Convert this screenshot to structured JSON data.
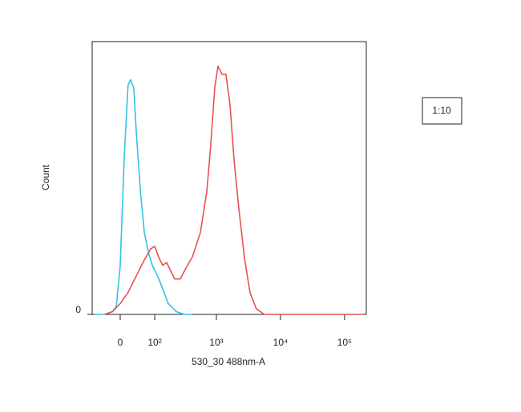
{
  "chart_data": {
    "type": "line",
    "xlabel": "530_30 488nm-A",
    "ylabel": "Count",
    "annotation": "1:10",
    "xscale": "biexponential",
    "xlim": [
      -75,
      218500
    ],
    "xticks": [
      0,
      {
        "value": 100,
        "label": "10²"
      },
      {
        "value": 1000,
        "label": "10³"
      },
      {
        "value": 10000,
        "label": "10⁴"
      },
      {
        "value": 100000,
        "label": "10⁵"
      }
    ],
    "ylim": [
      0,
      100
    ],
    "yticks": [
      0
    ],
    "series": [
      {
        "color": "#33c3e3",
        "x": [
          -67,
          -38,
          -18,
          -9,
          0,
          9,
          18,
          24,
          32,
          38,
          50,
          62,
          75,
          90,
          119,
          172,
          233,
          313,
          419
        ],
        "values": [
          0,
          0,
          1,
          3,
          18,
          57,
          84,
          86,
          83,
          68,
          45,
          30,
          23,
          18,
          13,
          4,
          1,
          0,
          0
        ]
      },
      {
        "color": "#e8524e",
        "x": [
          -38,
          -18,
          0,
          18,
          38,
          62,
          84,
          100,
          118,
          138,
          162,
          188,
          219,
          270,
          332,
          419,
          562,
          708,
          816,
          943,
          1058,
          1222,
          1412,
          1631,
          1882,
          2236,
          2736,
          3350,
          4216,
          5620,
          42090,
          200000
        ],
        "values": [
          0,
          1,
          4,
          8,
          14,
          20,
          24,
          25,
          21,
          18,
          19,
          16,
          13,
          13,
          17,
          21,
          30,
          45,
          62,
          83,
          91,
          88,
          88,
          77,
          57,
          39,
          21,
          8,
          2,
          0,
          0,
          0
        ]
      }
    ]
  }
}
